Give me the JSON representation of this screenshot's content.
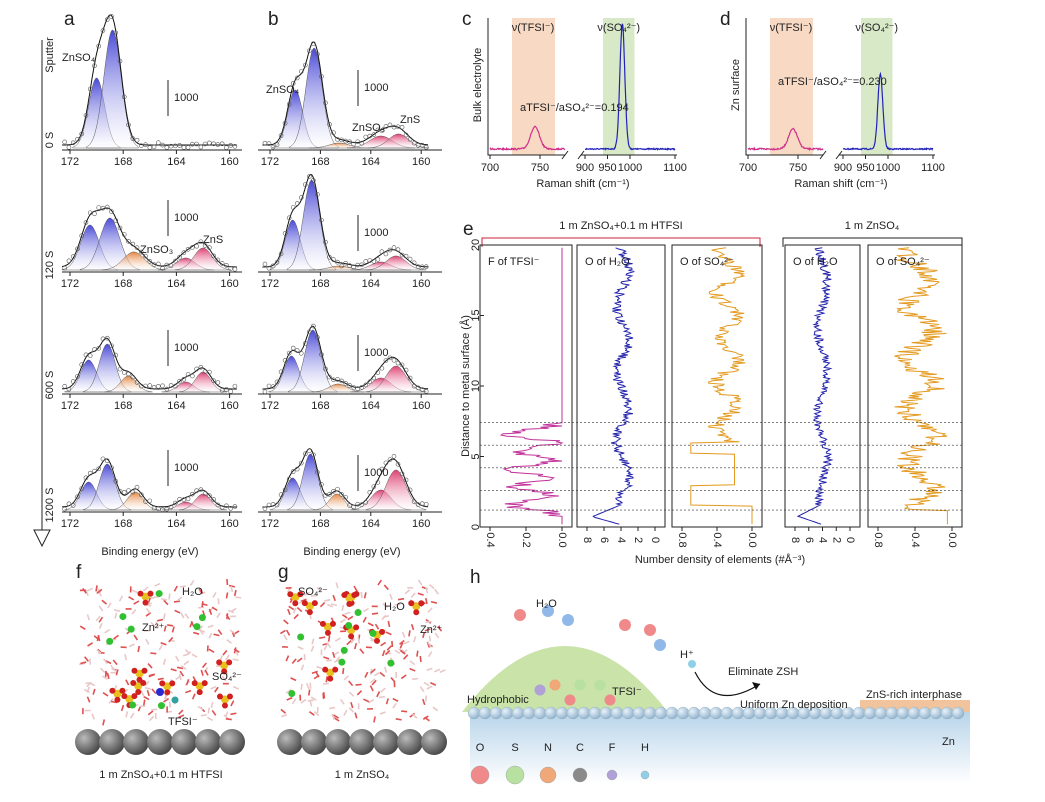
{
  "a": {
    "letter": "a",
    "conditions": [
      "Sputter",
      "0 S",
      "120 S",
      "600 S",
      "1200 S"
    ],
    "xticks": [
      172,
      168,
      164,
      160
    ],
    "xlabel": "Binding energy (eV)",
    "scale": "1000",
    "zn_so4": "ZnSO₄",
    "zn_so3": "ZnSO₃",
    "zns": "ZnS"
  },
  "b": {
    "letter": "b",
    "xticks": [
      172,
      168,
      164,
      160
    ],
    "xlabel": "Binding energy (eV)",
    "scale": "1000",
    "zn_so4": "ZnSO₄",
    "zn_so3": "ZnSO₃",
    "zns": "ZnS"
  },
  "c": {
    "letter": "c",
    "ylabel": "Bulk electrolyte",
    "xlabel": "Raman shift (cm⁻¹)",
    "xticks": [
      700,
      750,
      900,
      950,
      1000,
      1100
    ],
    "bands": [
      "ν(TFSI⁻)",
      "ν(SO₄²⁻)"
    ],
    "ratio": "aTFSI⁻/aSO₄²⁻=0.194"
  },
  "d": {
    "letter": "d",
    "ylabel": "Zn surface",
    "xlabel": "Raman shift (cm⁻¹)",
    "xticks": [
      700,
      750,
      900,
      950,
      1000,
      1100
    ],
    "bands": [
      "ν(TFSI⁻)",
      "ν(SO₄²⁻)"
    ],
    "ratio": "aTFSI⁻/aSO₄²⁻=0.230"
  },
  "e": {
    "letter": "e",
    "groups": [
      "1 m ZnSO₄+0.1 m HTFSI",
      "1 m ZnSO₄"
    ],
    "ylabel": "Distance to metal surface (Å)",
    "yticks": [
      0,
      5,
      10,
      15,
      20
    ],
    "xlabel": "Number density of elements (#Å⁻³)",
    "subplots": [
      {
        "title": "F of TFSI⁻",
        "xticks": [
          0.4,
          0.2,
          {
            "value": 0,
            "label": "0.0"
          }
        ]
      },
      {
        "title": "O of H₂O",
        "xticks": [
          8,
          6,
          4,
          2,
          0
        ]
      },
      {
        "title": "O of SO₄²⁻",
        "xticks": [
          0.8,
          0.4,
          {
            "value": 0,
            "label": "0.0"
          }
        ]
      },
      {
        "title": "O of H₂O",
        "xticks": [
          8,
          6,
          4,
          2,
          0
        ]
      },
      {
        "title": "O of SO₄²⁻",
        "xticks": [
          0.8,
          0.4,
          {
            "value": 0,
            "label": "0.0"
          }
        ]
      }
    ]
  },
  "f": {
    "letter": "f",
    "h2o": "H₂O",
    "zn": "Zn²⁺",
    "so4": "SO₄²⁻",
    "tfsi": "TFSI⁻",
    "caption": "1 m ZnSO₄+0.1 m HTFSI"
  },
  "g": {
    "letter": "g",
    "so4": "SO₄²⁻",
    "h2o": "H₂O",
    "zn": "Zn²⁺",
    "caption": "1 m ZnSO₄"
  },
  "h": {
    "letter": "h",
    "h2o": "H₂O",
    "h_plus": "H⁺",
    "eliminate": "Eliminate ZSH",
    "tfsi": "TFSI⁻",
    "hydrophobic": "Hydrophobic",
    "uniform": "Uniform Zn deposition",
    "zns": "ZnS-rich interphase",
    "zn": "Zn",
    "legend": [
      "O",
      "S",
      "N",
      "C",
      "F",
      "H"
    ]
  }
}
